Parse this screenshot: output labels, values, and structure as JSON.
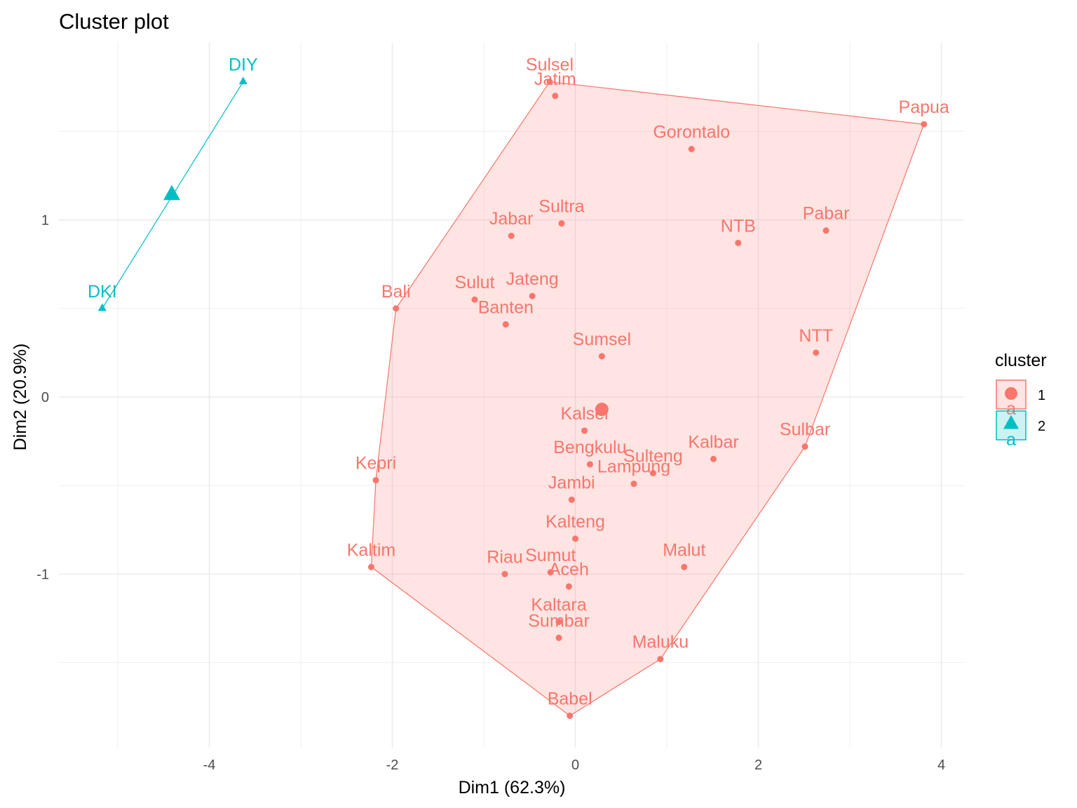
{
  "chart_data": {
    "type": "scatter",
    "title": "Cluster plot",
    "xlabel": "Dim1 (62.3%)",
    "ylabel": "Dim2 (20.9%)",
    "xlim": [
      -5.25,
      4.25
    ],
    "ylim": [
      -1.97,
      2.0
    ],
    "x_ticks": [
      -4,
      -2,
      0,
      2,
      4
    ],
    "y_ticks": [
      -1,
      0,
      1
    ],
    "x_tick_labels": [
      "-4",
      "-2",
      "0",
      "2",
      "4"
    ],
    "y_tick_labels": [
      "-1",
      "0",
      "1"
    ],
    "grid": true,
    "legend": {
      "title": "cluster",
      "position": "right",
      "entries": [
        "1",
        "2"
      ],
      "key_text": "a"
    },
    "series": [
      {
        "name": "1",
        "color": "#F8766D",
        "marker": "circle",
        "center": [
          0.29,
          -0.07
        ],
        "hull": [
          "Sulsel",
          "Papua",
          "Sulbar",
          "Maluku",
          "Babel",
          "Kaltim",
          "Kepri",
          "Bali"
        ],
        "points": [
          {
            "label": "Sulsel",
            "x": -0.28,
            "y": 1.78
          },
          {
            "label": "Jatim",
            "x": -0.22,
            "y": 1.7
          },
          {
            "label": "Papua",
            "x": 3.81,
            "y": 1.54
          },
          {
            "label": "Gorontalo",
            "x": 1.27,
            "y": 1.4
          },
          {
            "label": "Sultra",
            "x": -0.15,
            "y": 0.98
          },
          {
            "label": "Jabar",
            "x": -0.7,
            "y": 0.91
          },
          {
            "label": "NTB",
            "x": 1.78,
            "y": 0.87
          },
          {
            "label": "Pabar",
            "x": 2.74,
            "y": 0.94
          },
          {
            "label": "Sulut",
            "x": -1.1,
            "y": 0.55
          },
          {
            "label": "Jateng",
            "x": -0.47,
            "y": 0.57
          },
          {
            "label": "Bali",
            "x": -1.96,
            "y": 0.5
          },
          {
            "label": "Banten",
            "x": -0.76,
            "y": 0.41
          },
          {
            "label": "Sumsel",
            "x": 0.29,
            "y": 0.23
          },
          {
            "label": "NTT",
            "x": 2.63,
            "y": 0.25
          },
          {
            "label": "Kalsel",
            "x": 0.1,
            "y": -0.19
          },
          {
            "label": "Sulbar",
            "x": 2.51,
            "y": -0.28
          },
          {
            "label": "Bengkulu",
            "x": 0.16,
            "y": -0.38
          },
          {
            "label": "Kalbar",
            "x": 1.51,
            "y": -0.35
          },
          {
            "label": "Sulteng",
            "x": 0.85,
            "y": -0.43
          },
          {
            "label": "Lampung",
            "x": 0.64,
            "y": -0.49
          },
          {
            "label": "Kepri",
            "x": -2.18,
            "y": -0.47
          },
          {
            "label": "Jambi",
            "x": -0.04,
            "y": -0.58
          },
          {
            "label": "Kalteng",
            "x": 0.0,
            "y": -0.8
          },
          {
            "label": "Kaltim",
            "x": -2.23,
            "y": -0.96
          },
          {
            "label": "Malut",
            "x": 1.19,
            "y": -0.96
          },
          {
            "label": "Riau",
            "x": -0.77,
            "y": -1.0
          },
          {
            "label": "Sumut",
            "x": -0.27,
            "y": -0.99
          },
          {
            "label": "Aceh",
            "x": -0.07,
            "y": -1.07
          },
          {
            "label": "Kaltara",
            "x": -0.18,
            "y": -1.27
          },
          {
            "label": "Sumbar",
            "x": -0.18,
            "y": -1.36
          },
          {
            "label": "Maluku",
            "x": 0.93,
            "y": -1.48
          },
          {
            "label": "Babel",
            "x": -0.06,
            "y": -1.8
          }
        ]
      },
      {
        "name": "2",
        "color": "#00BFC4",
        "marker": "triangle",
        "center": [
          -4.41,
          1.14
        ],
        "hull": [
          "DIY",
          "DKI"
        ],
        "points": [
          {
            "label": "DIY",
            "x": -3.63,
            "y": 1.78
          },
          {
            "label": "DKI",
            "x": -5.17,
            "y": 0.5
          }
        ]
      }
    ]
  }
}
